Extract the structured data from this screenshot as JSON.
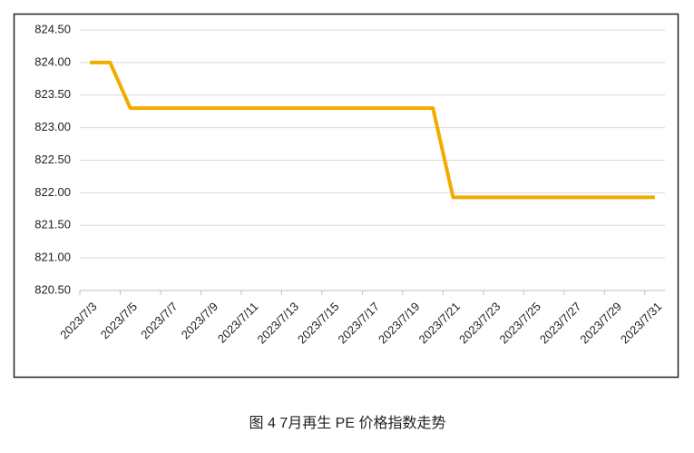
{
  "chart_data": {
    "type": "line",
    "caption": "图 4  7月再生 PE 价格指数走势",
    "categories": [
      "2023/7/3",
      null,
      "2023/7/5",
      null,
      "2023/7/7",
      null,
      "2023/7/9",
      null,
      "2023/7/11",
      null,
      "2023/7/13",
      null,
      "2023/7/15",
      null,
      "2023/7/17",
      null,
      "2023/7/19",
      null,
      "2023/7/21",
      null,
      "2023/7/23",
      null,
      "2023/7/25",
      null,
      "2023/7/27",
      null,
      "2023/7/29",
      null,
      "2023/7/31"
    ],
    "series": [
      {
        "color": "#f2ac00",
        "values": [
          824.0,
          824.0,
          823.3,
          823.3,
          823.3,
          823.3,
          823.3,
          823.3,
          823.3,
          823.3,
          823.3,
          823.3,
          823.3,
          823.3,
          823.3,
          823.3,
          823.3,
          823.3,
          821.93,
          821.93,
          821.93,
          821.93,
          821.93,
          821.93,
          821.93,
          821.93,
          821.93,
          821.93,
          821.93
        ]
      }
    ],
    "ylim": [
      820.5,
      824.5
    ],
    "yticks": [
      {
        "value": 820.5,
        "label": "820.50"
      },
      {
        "value": 821.0,
        "label": "821.00"
      },
      {
        "value": 821.5,
        "label": "821.50"
      },
      {
        "value": 822.0,
        "label": "822.00"
      },
      {
        "value": 822.5,
        "label": "822.50"
      },
      {
        "value": 823.0,
        "label": "823.00"
      },
      {
        "value": 823.5,
        "label": "823.50"
      },
      {
        "value": 824.0,
        "label": "824.00"
      },
      {
        "value": 824.5,
        "label": "824.50"
      }
    ],
    "grid": true
  }
}
